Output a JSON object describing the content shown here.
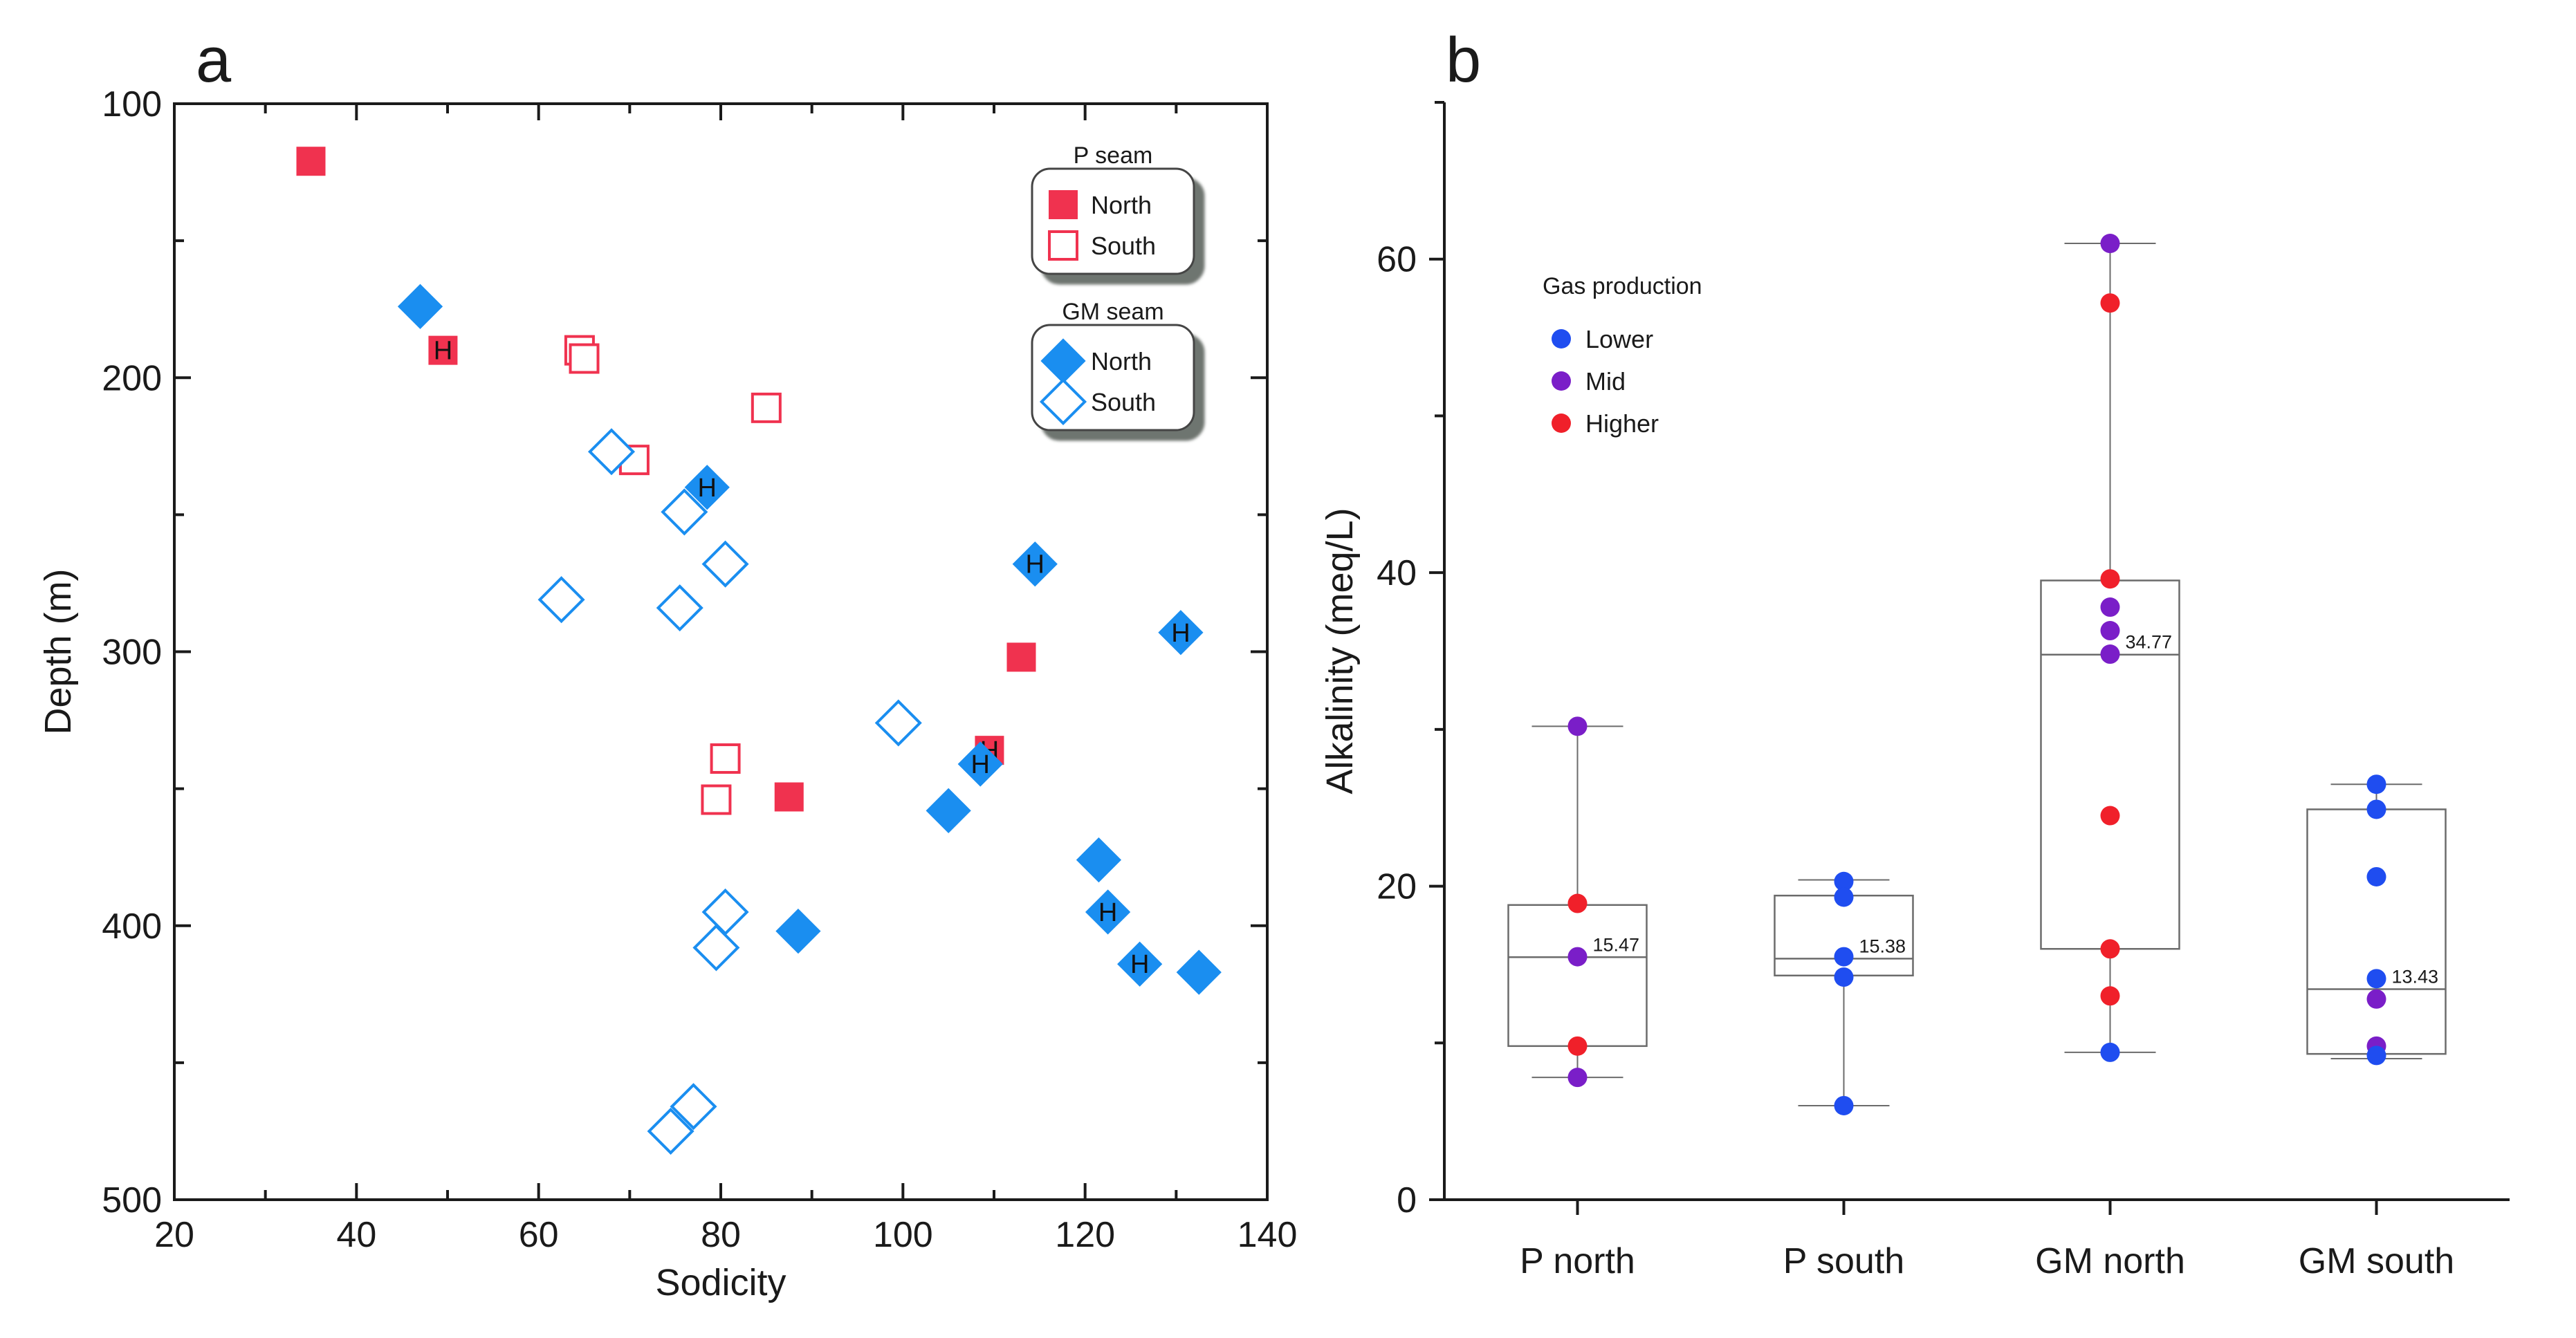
{
  "chart_data": [
    {
      "panel": "a",
      "type": "scatter",
      "xlabel": "Sodicity",
      "ylabel": "Depth (m)",
      "xlim": [
        20,
        140
      ],
      "ylim": [
        100,
        500
      ],
      "y_inverted": true,
      "xticks": [
        20,
        40,
        60,
        80,
        100,
        120,
        140
      ],
      "yticks": [
        100,
        200,
        300,
        400,
        500
      ],
      "grid": false,
      "marker_label": "H",
      "legend_groups": [
        {
          "title": "P seam",
          "entries": [
            {
              "label": "North",
              "marker": "square",
              "filled": true,
              "color": "#f0324f"
            },
            {
              "label": "South",
              "marker": "square",
              "filled": false,
              "color": "#f0324f"
            }
          ]
        },
        {
          "title": "GM seam",
          "entries": [
            {
              "label": "North",
              "marker": "diamond",
              "filled": true,
              "color": "#1a8ef0"
            },
            {
              "label": "South",
              "marker": "diamond",
              "filled": false,
              "color": "#1a8ef0"
            }
          ]
        }
      ],
      "series": [
        {
          "seam": "P seam",
          "name": "North",
          "marker": "square",
          "filled": true,
          "color": "#f0324f",
          "points": [
            {
              "x": 35,
              "y": 121,
              "h": false
            },
            {
              "x": 49.5,
              "y": 190,
              "h": true
            },
            {
              "x": 113,
              "y": 302,
              "h": false
            },
            {
              "x": 109.5,
              "y": 336,
              "h": true
            },
            {
              "x": 87.5,
              "y": 353,
              "h": false
            }
          ]
        },
        {
          "seam": "P seam",
          "name": "South",
          "marker": "square",
          "filled": false,
          "color": "#f0324f",
          "points": [
            {
              "x": 64.5,
              "y": 190,
              "h": false
            },
            {
              "x": 65,
              "y": 193,
              "h": false
            },
            {
              "x": 85,
              "y": 211,
              "h": false
            },
            {
              "x": 70.5,
              "y": 230,
              "h": false
            },
            {
              "x": 80.5,
              "y": 339,
              "h": false
            },
            {
              "x": 79.5,
              "y": 354,
              "h": false
            }
          ]
        },
        {
          "seam": "GM seam",
          "name": "North",
          "marker": "diamond",
          "filled": true,
          "color": "#1a8ef0",
          "points": [
            {
              "x": 47,
              "y": 174,
              "h": false
            },
            {
              "x": 78.5,
              "y": 240,
              "h": true
            },
            {
              "x": 114.5,
              "y": 268,
              "h": true
            },
            {
              "x": 130.5,
              "y": 293,
              "h": true
            },
            {
              "x": 108.5,
              "y": 341,
              "h": true
            },
            {
              "x": 105,
              "y": 358,
              "h": false
            },
            {
              "x": 121.5,
              "y": 376,
              "h": false
            },
            {
              "x": 122.5,
              "y": 395,
              "h": true
            },
            {
              "x": 88.5,
              "y": 402,
              "h": false
            },
            {
              "x": 126,
              "y": 414,
              "h": true
            },
            {
              "x": 132.5,
              "y": 417,
              "h": false
            }
          ]
        },
        {
          "seam": "GM seam",
          "name": "South",
          "marker": "diamond",
          "filled": false,
          "color": "#1a8ef0",
          "points": [
            {
              "x": 68,
              "y": 227,
              "h": false
            },
            {
              "x": 76,
              "y": 249,
              "h": false
            },
            {
              "x": 80.5,
              "y": 268,
              "h": false
            },
            {
              "x": 62.5,
              "y": 281,
              "h": false
            },
            {
              "x": 75.5,
              "y": 284,
              "h": false
            },
            {
              "x": 99.5,
              "y": 326,
              "h": false
            },
            {
              "x": 80.5,
              "y": 395,
              "h": false
            },
            {
              "x": 79.5,
              "y": 408,
              "h": false
            },
            {
              "x": 77,
              "y": 466,
              "h": false
            },
            {
              "x": 74.5,
              "y": 475,
              "h": false
            }
          ]
        }
      ]
    },
    {
      "panel": "b",
      "type": "box",
      "xlabel": "",
      "ylabel": "Alkalinity (meq/L)",
      "ylim": [
        0,
        70
      ],
      "yticks": [
        0,
        20,
        40,
        60
      ],
      "grid": false,
      "categories": [
        "P north",
        "P south",
        "GM north",
        "GM south"
      ],
      "legend": {
        "title": "Gas production",
        "entries": [
          {
            "label": "Lower",
            "color": "#1f4df0"
          },
          {
            "label": "Mid",
            "color": "#7a1ec8"
          },
          {
            "label": "Higher",
            "color": "#f0202a"
          }
        ]
      },
      "boxes": [
        {
          "category": "P north",
          "min": 7.8,
          "q1": 9.8,
          "median": 15.47,
          "median_label": "15.47",
          "q3": 18.8,
          "max": 30.2
        },
        {
          "category": "P south",
          "min": 6,
          "q1": 14.3,
          "median": 15.38,
          "median_label": "15.38",
          "q3": 19.4,
          "max": 20.4
        },
        {
          "category": "GM north",
          "min": 9.4,
          "q1": 16,
          "median": 34.77,
          "median_label": "34.77",
          "q3": 39.5,
          "max": 61
        },
        {
          "category": "GM south",
          "min": 9,
          "q1": 9.3,
          "median": 13.43,
          "median_label": "13.43",
          "q3": 24.9,
          "max": 26.5
        }
      ],
      "points": [
        {
          "category": "P north",
          "value": 30.2,
          "group": "Mid"
        },
        {
          "category": "P north",
          "value": 18.9,
          "group": "Higher"
        },
        {
          "category": "P north",
          "value": 15.5,
          "group": "Mid"
        },
        {
          "category": "P north",
          "value": 9.8,
          "group": "Higher"
        },
        {
          "category": "P north",
          "value": 7.8,
          "group": "Mid"
        },
        {
          "category": "P south",
          "value": 20.3,
          "group": "Lower"
        },
        {
          "category": "P south",
          "value": 19.3,
          "group": "Lower"
        },
        {
          "category": "P south",
          "value": 15.5,
          "group": "Lower"
        },
        {
          "category": "P south",
          "value": 14.2,
          "group": "Lower"
        },
        {
          "category": "P south",
          "value": 6.0,
          "group": "Lower"
        },
        {
          "category": "GM north",
          "value": 61.0,
          "group": "Mid"
        },
        {
          "category": "GM north",
          "value": 57.2,
          "group": "Higher"
        },
        {
          "category": "GM north",
          "value": 39.6,
          "group": "Higher"
        },
        {
          "category": "GM north",
          "value": 37.8,
          "group": "Mid"
        },
        {
          "category": "GM north",
          "value": 36.3,
          "group": "Mid"
        },
        {
          "category": "GM north",
          "value": 34.8,
          "group": "Mid"
        },
        {
          "category": "GM north",
          "value": 24.5,
          "group": "Higher"
        },
        {
          "category": "GM north",
          "value": 16.0,
          "group": "Higher"
        },
        {
          "category": "GM north",
          "value": 13.0,
          "group": "Higher"
        },
        {
          "category": "GM north",
          "value": 9.4,
          "group": "Lower"
        },
        {
          "category": "GM south",
          "value": 26.5,
          "group": "Lower"
        },
        {
          "category": "GM south",
          "value": 24.9,
          "group": "Lower"
        },
        {
          "category": "GM south",
          "value": 20.6,
          "group": "Lower"
        },
        {
          "category": "GM south",
          "value": 14.1,
          "group": "Lower"
        },
        {
          "category": "GM south",
          "value": 12.8,
          "group": "Mid"
        },
        {
          "category": "GM south",
          "value": 9.8,
          "group": "Mid"
        },
        {
          "category": "GM south",
          "value": 9.2,
          "group": "Lower"
        }
      ]
    }
  ],
  "panel_letters": {
    "a": "a",
    "b": "b"
  }
}
